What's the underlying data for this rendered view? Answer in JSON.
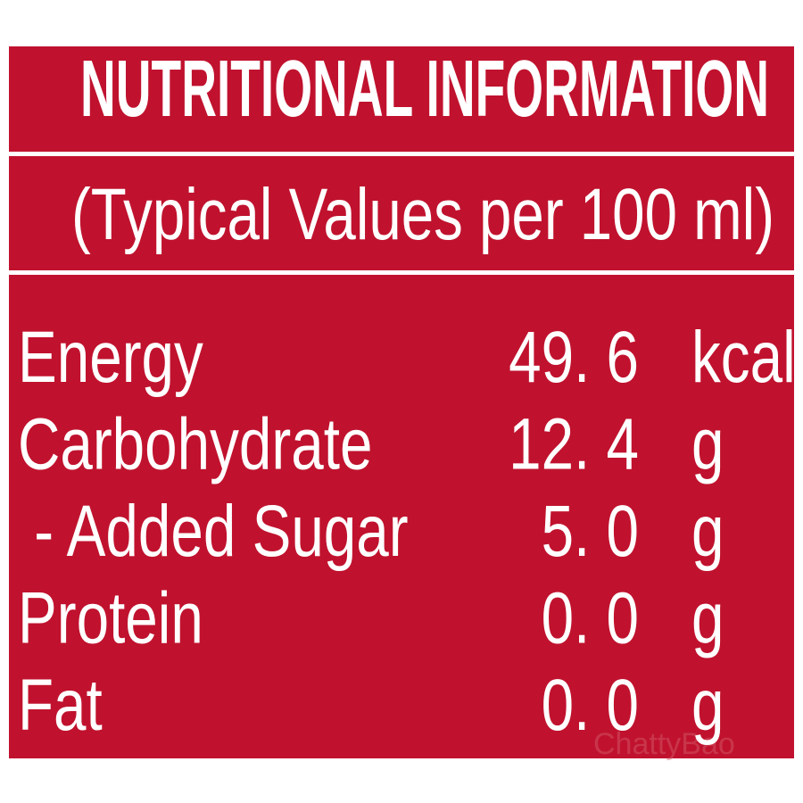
{
  "header": {
    "title": "NUTRITIONAL INFORMATION",
    "subtitle": "(Typical Values per 100 ml)"
  },
  "table": {
    "rows": [
      [
        "Energy",
        "49. 6",
        "kcal"
      ],
      [
        "Carbohydrate",
        "12. 4",
        "g"
      ],
      [
        " - Added Sugar",
        "5. 0",
        "g"
      ],
      [
        "Protein",
        "0. 0",
        "g"
      ],
      [
        "Fat",
        "0. 0",
        "g"
      ]
    ]
  },
  "watermark": "ChattyBao"
}
